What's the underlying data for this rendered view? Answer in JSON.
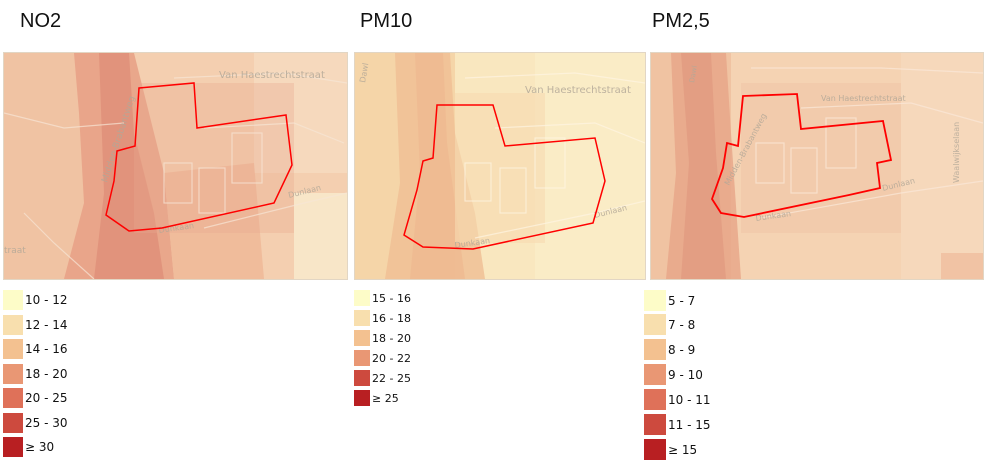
{
  "panels": [
    {
      "id": "no2",
      "title": "NO2",
      "streets": [
        "Van Haestrechtstraat",
        "Midden-Brabantweg",
        "Dunkaan",
        "Dunlaan",
        "traat"
      ],
      "legend": [
        {
          "label": "10 - 12",
          "color": "#fdfcc8"
        },
        {
          "label": "12 - 14",
          "color": "#f8dfae"
        },
        {
          "label": "14 - 16",
          "color": "#f3c190"
        },
        {
          "label": "18 - 20",
          "color": "#e99774"
        },
        {
          "label": "20 - 25",
          "color": "#df7159"
        },
        {
          "label": "25 - 30",
          "color": "#cd4a3e"
        },
        {
          "label": "≥ 30",
          "color": "#b81f22"
        }
      ]
    },
    {
      "id": "pm10",
      "title": "PM10",
      "streets": [
        "Van Haestrechtstraat",
        "Dunkaan",
        "Dunlaan",
        "Dawl"
      ],
      "legend": [
        {
          "label": "15 - 16",
          "color": "#fdfcc8"
        },
        {
          "label": "16 - 18",
          "color": "#f8dfae"
        },
        {
          "label": "18 - 20",
          "color": "#f3c190"
        },
        {
          "label": "20 - 22",
          "color": "#e99774"
        },
        {
          "label": "22 - 25",
          "color": "#cd4a3e"
        },
        {
          "label": "≥ 25",
          "color": "#b81f22"
        }
      ]
    },
    {
      "id": "pm25",
      "title": "PM2,5",
      "streets": [
        "Van Haestrechtstraat",
        "Midden-Brabantweg",
        "Dunkaan",
        "Dunlaan",
        "Waalwijkselaan",
        "Dawl"
      ],
      "legend": [
        {
          "label": "5 - 7",
          "color": "#fdfcc8"
        },
        {
          "label": "7 - 8",
          "color": "#f8dfae"
        },
        {
          "label": "8 - 9",
          "color": "#f3c190"
        },
        {
          "label": "9 - 10",
          "color": "#e99774"
        },
        {
          "label": "10 - 11",
          "color": "#df7159"
        },
        {
          "label": "11 - 15",
          "color": "#cd4a3e"
        },
        {
          "label": "≥ 15",
          "color": "#b81f22"
        }
      ]
    }
  ],
  "colors": {
    "boundary": "#ff0000",
    "no2_base": "#f3c9a8",
    "pm10_base": "#f8e3b8",
    "pm25_base": "#f4cfae"
  }
}
